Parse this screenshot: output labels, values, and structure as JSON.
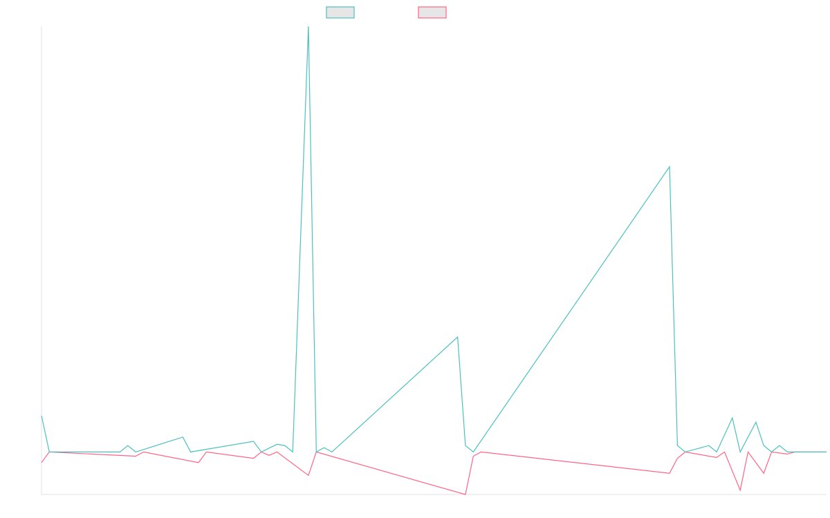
{
  "chart_data": {
    "type": "line",
    "title": "",
    "xlabel": "",
    "ylabel": "",
    "ylim": [
      -10,
      100
    ],
    "grid": false,
    "legend_position": "top-center",
    "series": [
      {
        "name": "",
        "color": "#4bc0c0",
        "fill": "#e6e6e6",
        "points": [
          [
            0,
            8.5
          ],
          [
            1,
            0
          ],
          [
            10,
            0
          ],
          [
            11,
            1.5
          ],
          [
            12,
            0
          ],
          [
            18,
            3.5
          ],
          [
            19,
            0
          ],
          [
            27,
            2.5
          ],
          [
            28,
            0
          ],
          [
            30,
            1.8
          ],
          [
            31,
            1.5
          ],
          [
            32,
            0
          ],
          [
            34,
            100
          ],
          [
            35,
            0
          ],
          [
            36,
            1
          ],
          [
            37,
            0
          ],
          [
            53,
            27
          ],
          [
            54,
            1.5
          ],
          [
            55,
            0
          ],
          [
            80,
            67
          ],
          [
            81,
            1.5
          ],
          [
            82,
            0
          ],
          [
            85,
            1.5
          ],
          [
            86,
            0
          ],
          [
            88,
            8
          ],
          [
            89,
            0
          ],
          [
            91,
            7
          ],
          [
            92,
            1.5
          ],
          [
            93,
            0
          ],
          [
            94,
            1.5
          ],
          [
            95,
            0
          ],
          [
            100,
            0
          ]
        ]
      },
      {
        "name": "",
        "color": "#ff6384",
        "fill": "#e6e6e6",
        "points": [
          [
            0,
            -2.5
          ],
          [
            1,
            0
          ],
          [
            12,
            -1
          ],
          [
            13,
            0
          ],
          [
            20,
            -2.5
          ],
          [
            21,
            0
          ],
          [
            27,
            -1.5
          ],
          [
            28,
            0
          ],
          [
            29,
            -0.8
          ],
          [
            30,
            0
          ],
          [
            34,
            -5.5
          ],
          [
            35,
            0
          ],
          [
            54,
            -10
          ],
          [
            55,
            -1
          ],
          [
            56,
            0
          ],
          [
            80,
            -5
          ],
          [
            81,
            -1.5
          ],
          [
            82,
            0
          ],
          [
            86,
            -1.3
          ],
          [
            87,
            0
          ],
          [
            89,
            -9
          ],
          [
            90,
            0
          ],
          [
            92,
            -5
          ],
          [
            93,
            0
          ],
          [
            95,
            -0.5
          ],
          [
            96,
            0
          ],
          [
            100,
            0
          ]
        ]
      }
    ]
  }
}
